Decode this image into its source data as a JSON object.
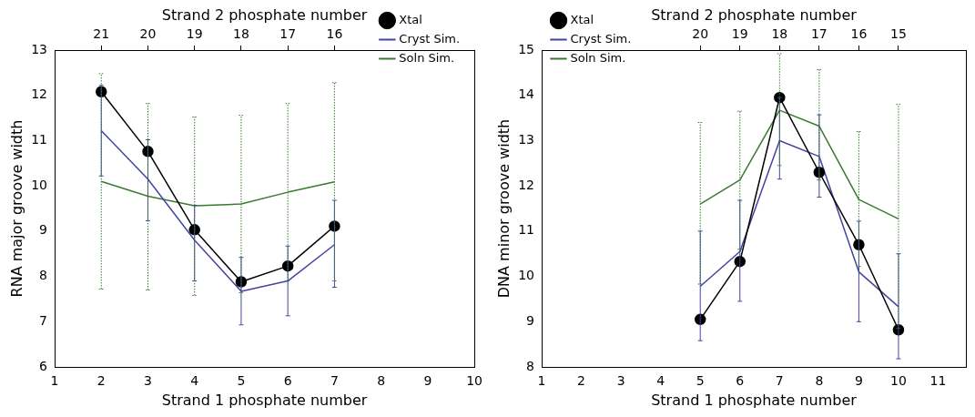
{
  "chart_data": [
    {
      "type": "line",
      "xlabel": "Strand 1 phosphate number",
      "x2label": "Strand 2 phosphate number",
      "ylabel": "RNA major groove width",
      "xlim": [
        1,
        10
      ],
      "xticks": [
        1,
        2,
        3,
        4,
        5,
        6,
        7,
        8,
        9,
        10
      ],
      "x2lim": [
        22,
        13
      ],
      "x2ticks": [
        21,
        20,
        19,
        18,
        17,
        16
      ],
      "ylim": [
        6,
        13
      ],
      "yticks": [
        6,
        7,
        8,
        9,
        10,
        11,
        12,
        13
      ],
      "grid": false,
      "legend": "top right",
      "x": [
        2,
        3,
        4,
        5,
        6,
        7
      ],
      "series": [
        {
          "name": "Xtal",
          "color": "#000000",
          "marker": "circle",
          "values": [
            12.08,
            10.76,
            9.03,
            7.88,
            8.23,
            9.11
          ]
        },
        {
          "name": "Cryst Sim.",
          "color": "#4444a0",
          "marker": "none",
          "values": [
            11.22,
            10.15,
            8.8,
            7.67,
            7.9,
            8.7
          ],
          "errors": [
            [
              10.22,
              12.22
            ],
            [
              9.23,
              11.02
            ],
            [
              7.9,
              9.57
            ],
            [
              6.93,
              8.42
            ],
            [
              7.13,
              8.67
            ],
            [
              7.76,
              9.68
            ]
          ]
        },
        {
          "name": "Soln Sim.",
          "color": "#3a7a30",
          "marker": "none",
          "values": [
            10.1,
            9.77,
            9.56,
            9.6,
            9.86,
            10.09
          ],
          "errors": [
            [
              7.72,
              12.48
            ],
            [
              7.7,
              11.82
            ],
            [
              7.58,
              11.52
            ],
            [
              7.64,
              11.56
            ],
            [
              7.9,
              11.82
            ],
            [
              7.9,
              12.28
            ]
          ]
        }
      ]
    },
    {
      "type": "line",
      "xlabel": "Strand 1 phosphate number",
      "x2label": "Strand 2 phosphate number",
      "ylabel": "DNA minor groove width",
      "xlim": [
        1,
        11.7
      ],
      "xticks": [
        1,
        2,
        3,
        4,
        5,
        6,
        7,
        8,
        9,
        10,
        11
      ],
      "x2lim": [
        24,
        13.3
      ],
      "x2ticks": [
        20,
        19,
        18,
        17,
        16,
        15
      ],
      "ylim": [
        8,
        15
      ],
      "yticks": [
        8,
        9,
        10,
        11,
        12,
        13,
        14,
        15
      ],
      "grid": false,
      "legend": "top left",
      "x": [
        5,
        6,
        7,
        8,
        9,
        10
      ],
      "series": [
        {
          "name": "Xtal",
          "color": "#000000",
          "marker": "circle",
          "values": [
            9.05,
            10.33,
            13.95,
            12.3,
            10.7,
            8.82
          ]
        },
        {
          "name": "Cryst Sim.",
          "color": "#4444a0",
          "marker": "none",
          "values": [
            9.78,
            10.55,
            13.0,
            12.65,
            10.1,
            9.33
          ],
          "errors": [
            [
              8.58,
              11.0
            ],
            [
              9.45,
              11.68
            ],
            [
              12.15,
              13.95
            ],
            [
              11.75,
              13.57
            ],
            [
              9.0,
              11.22
            ],
            [
              8.18,
              10.5
            ]
          ]
        },
        {
          "name": "Soln Sim.",
          "color": "#3a7a30",
          "marker": "none",
          "values": [
            11.6,
            12.13,
            13.67,
            13.32,
            11.7,
            11.27
          ],
          "errors": [
            [
              9.83,
              13.4
            ],
            [
              10.6,
              13.65
            ],
            [
              12.45,
              14.92
            ],
            [
              12.13,
              14.57
            ],
            [
              10.22,
              13.2
            ],
            [
              8.85,
              13.8
            ]
          ]
        }
      ]
    }
  ]
}
